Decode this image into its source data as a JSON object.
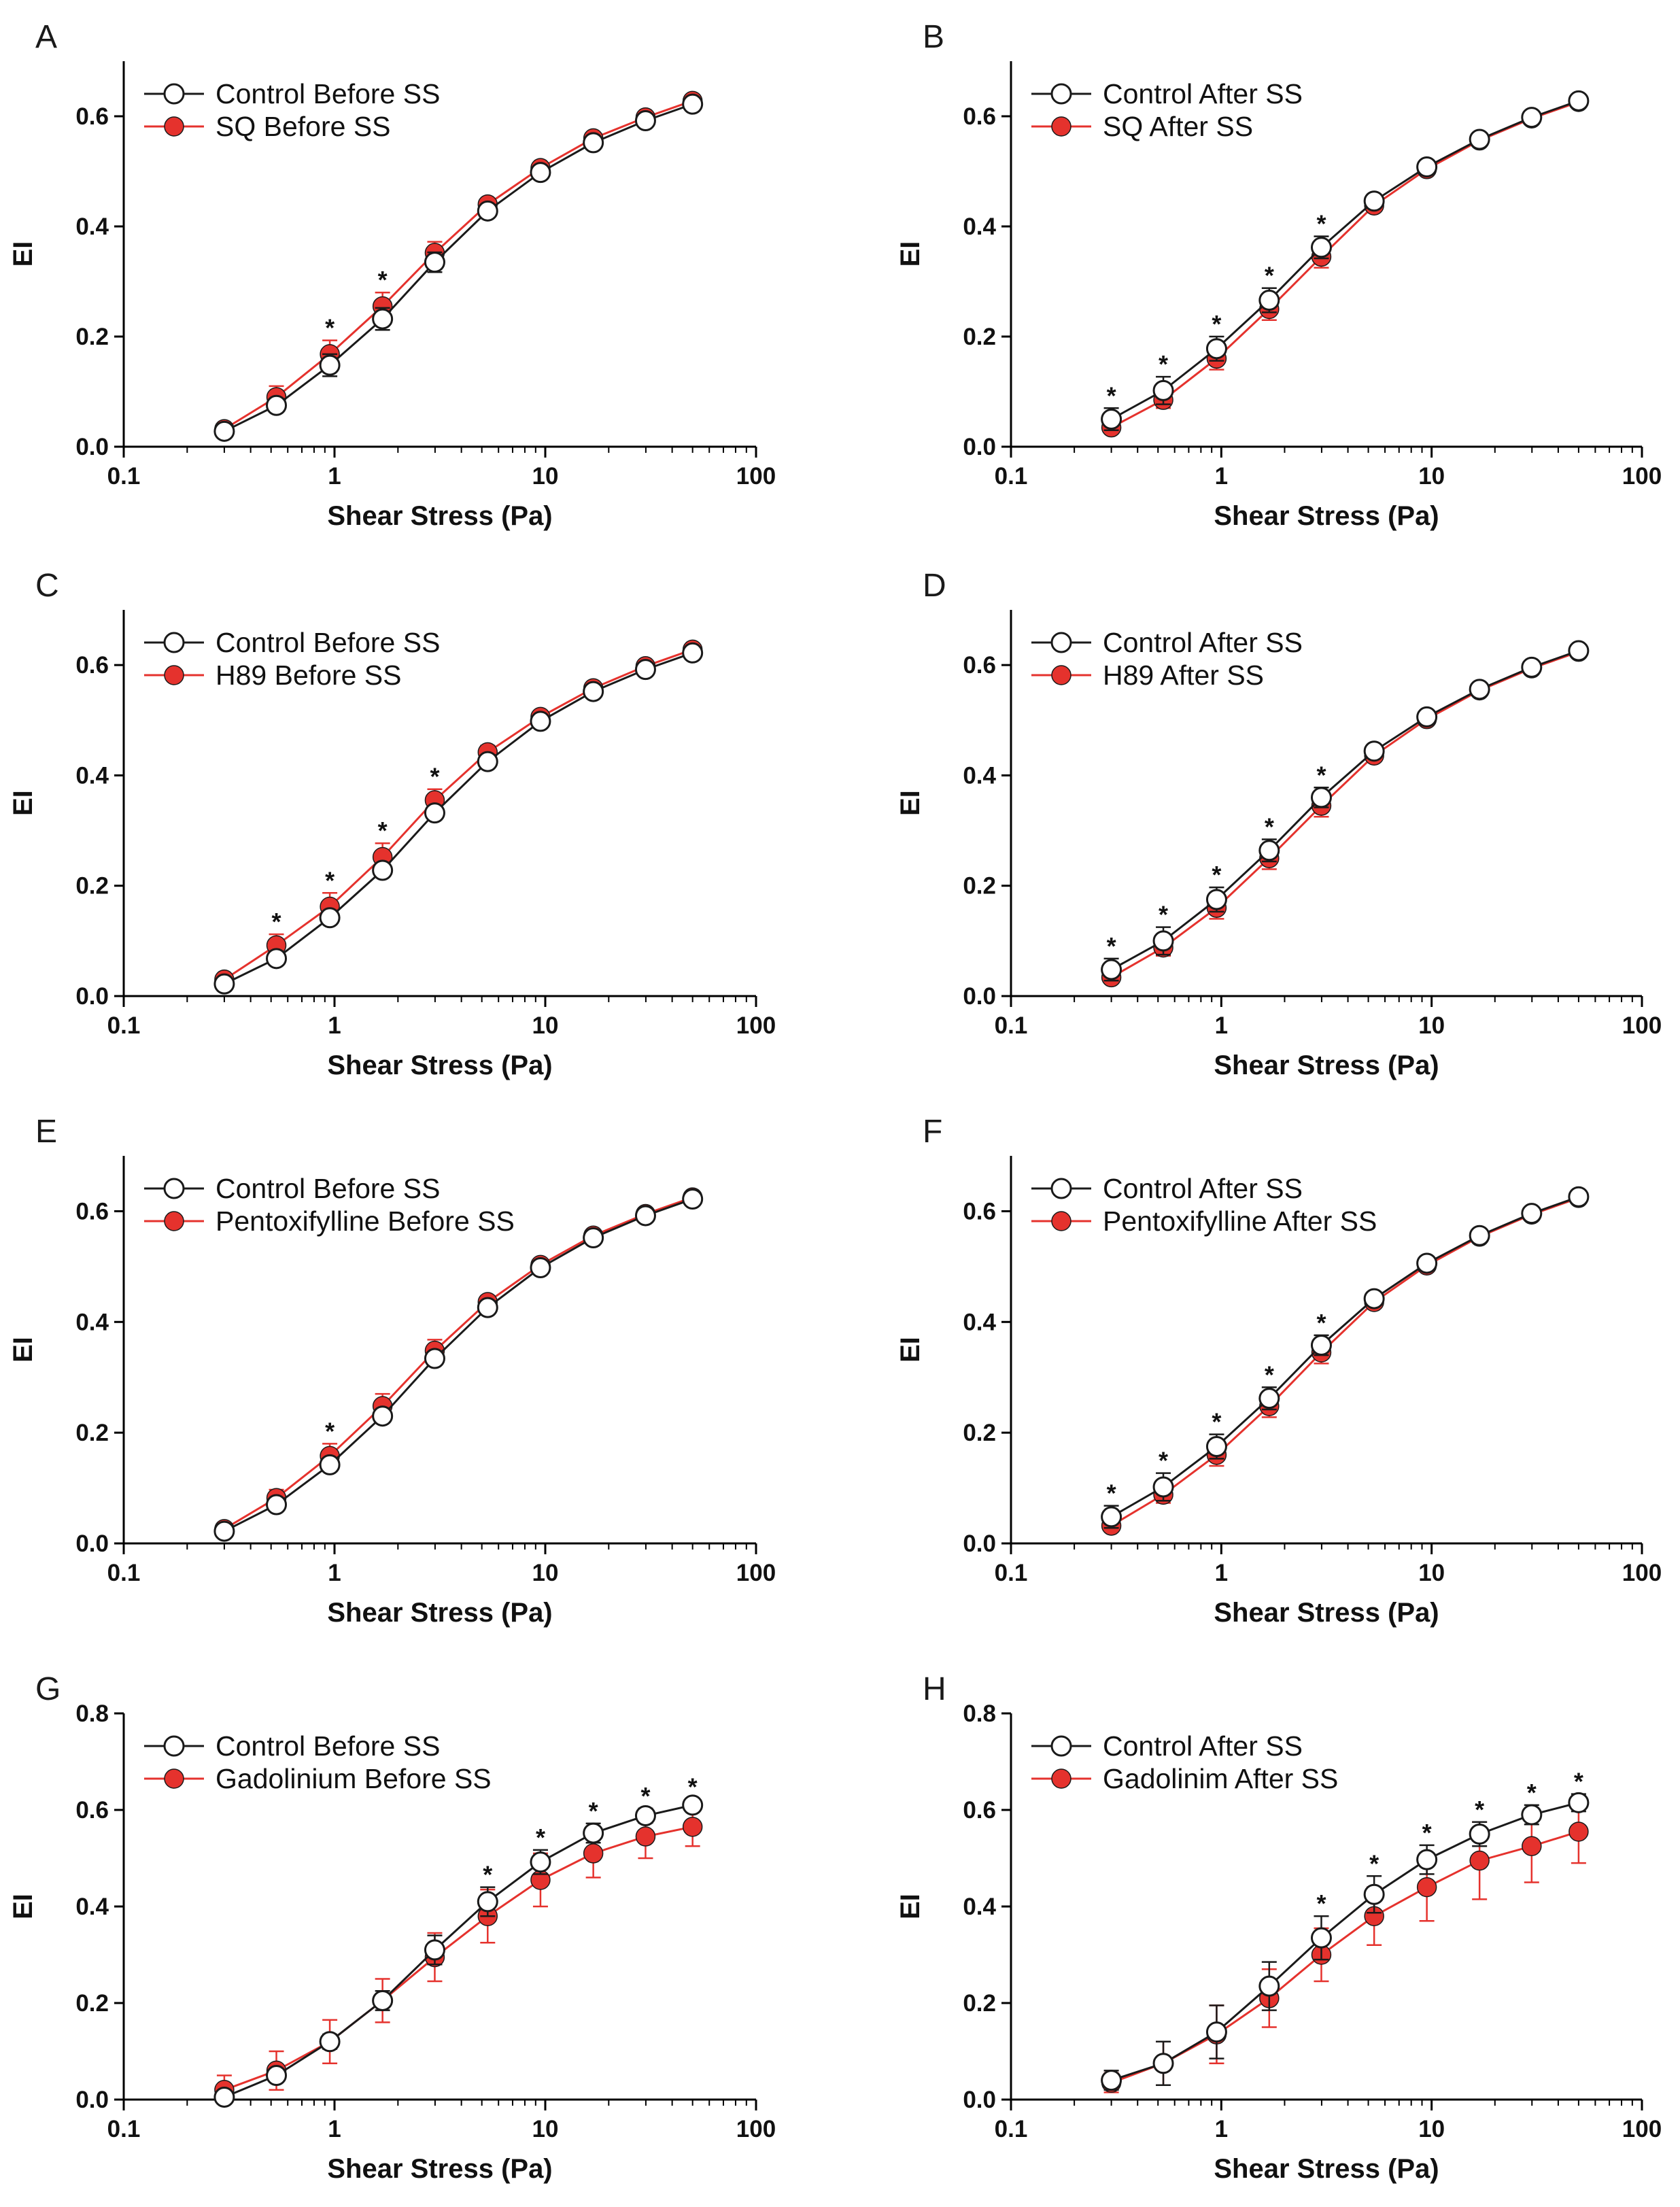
{
  "figure": {
    "colors": {
      "control_line": "#1a1a1a",
      "control_fill": "#ffffff",
      "treatment": "#e5322d"
    }
  },
  "chart_data": [
    {
      "panel": "A",
      "type": "line",
      "xscale": "log",
      "xlabel": "Shear Stress (Pa)",
      "ylabel": "EI",
      "xlim": [
        0.1,
        100
      ],
      "ylim": [
        0.0,
        0.7
      ],
      "xticks": [
        0.1,
        1,
        10,
        100
      ],
      "xtick_labels": [
        "0.1",
        "1",
        "10",
        "100"
      ],
      "yticks": [
        0.0,
        0.2,
        0.4,
        0.6
      ],
      "ytick_labels": [
        "0.0",
        "0.2",
        "0.4",
        "0.6"
      ],
      "x": [
        0.3,
        0.53,
        0.95,
        1.69,
        2.99,
        5.33,
        9.49,
        16.9,
        29.9,
        50
      ],
      "legend": [
        "Control Before SS",
        "SQ Before SS"
      ],
      "series": [
        {
          "name": "Control Before SS",
          "values": [
            0.028,
            0.075,
            0.148,
            0.232,
            0.335,
            0.428,
            0.498,
            0.552,
            0.592,
            0.622
          ],
          "errors": [
            0.008,
            0.012,
            0.02,
            0.02,
            0.018,
            0.01,
            0.008,
            0.006,
            0.005,
            0.004
          ]
        },
        {
          "name": "SQ Before SS",
          "values": [
            0.032,
            0.09,
            0.168,
            0.255,
            0.352,
            0.44,
            0.506,
            0.56,
            0.598,
            0.628
          ],
          "errors": [
            0.008,
            0.02,
            0.025,
            0.025,
            0.02,
            0.01,
            0.008,
            0.006,
            0.005,
            0.004
          ]
        }
      ],
      "significance": [
        0.95,
        1.69
      ]
    },
    {
      "panel": "B",
      "type": "line",
      "xscale": "log",
      "xlabel": "Shear Stress (Pa)",
      "ylabel": "EI",
      "xlim": [
        0.1,
        100
      ],
      "ylim": [
        0.0,
        0.7
      ],
      "xticks": [
        0.1,
        1,
        10,
        100
      ],
      "xtick_labels": [
        "0.1",
        "1",
        "10",
        "100"
      ],
      "yticks": [
        0.0,
        0.2,
        0.4,
        0.6
      ],
      "ytick_labels": [
        "0.0",
        "0.2",
        "0.4",
        "0.6"
      ],
      "x": [
        0.3,
        0.53,
        0.95,
        1.69,
        2.99,
        5.33,
        9.49,
        16.9,
        29.9,
        50
      ],
      "legend": [
        "Control After SS",
        "SQ After SS"
      ],
      "series": [
        {
          "name": "Control After SS",
          "values": [
            0.05,
            0.102,
            0.178,
            0.266,
            0.362,
            0.446,
            0.508,
            0.558,
            0.598,
            0.628
          ],
          "errors": [
            0.02,
            0.025,
            0.022,
            0.022,
            0.02,
            0.012,
            0.008,
            0.006,
            0.005,
            0.004
          ]
        },
        {
          "name": "SQ After SS",
          "values": [
            0.035,
            0.085,
            0.16,
            0.25,
            0.345,
            0.438,
            0.504,
            0.556,
            0.596,
            0.626
          ],
          "errors": [
            0.01,
            0.015,
            0.02,
            0.02,
            0.02,
            0.01,
            0.008,
            0.006,
            0.005,
            0.004
          ]
        }
      ],
      "significance": [
        0.3,
        0.53,
        0.95,
        1.69,
        2.99
      ]
    },
    {
      "panel": "C",
      "type": "line",
      "xscale": "log",
      "xlabel": "Shear Stress (Pa)",
      "ylabel": "EI",
      "xlim": [
        0.1,
        100
      ],
      "ylim": [
        0.0,
        0.7
      ],
      "xticks": [
        0.1,
        1,
        10,
        100
      ],
      "xtick_labels": [
        "0.1",
        "1",
        "10",
        "100"
      ],
      "yticks": [
        0.0,
        0.2,
        0.4,
        0.6
      ],
      "ytick_labels": [
        "0.0",
        "0.2",
        "0.4",
        "0.6"
      ],
      "x": [
        0.3,
        0.53,
        0.95,
        1.69,
        2.99,
        5.33,
        9.49,
        16.9,
        29.9,
        50
      ],
      "legend": [
        "Control Before SS",
        "H89 Before SS"
      ],
      "series": [
        {
          "name": "Control Before SS",
          "values": [
            0.022,
            0.068,
            0.142,
            0.228,
            0.332,
            0.425,
            0.498,
            0.552,
            0.592,
            0.622
          ],
          "errors": [
            0.006,
            0.008,
            0.01,
            0.012,
            0.012,
            0.01,
            0.008,
            0.006,
            0.005,
            0.004
          ]
        },
        {
          "name": "H89 Before SS",
          "values": [
            0.03,
            0.092,
            0.162,
            0.252,
            0.355,
            0.442,
            0.506,
            0.558,
            0.598,
            0.628
          ],
          "errors": [
            0.008,
            0.02,
            0.025,
            0.025,
            0.02,
            0.012,
            0.008,
            0.006,
            0.005,
            0.004
          ]
        }
      ],
      "significance": [
        0.53,
        0.95,
        1.69,
        2.99
      ]
    },
    {
      "panel": "D",
      "type": "line",
      "xscale": "log",
      "xlabel": "Shear Stress (Pa)",
      "ylabel": "EI",
      "xlim": [
        0.1,
        100
      ],
      "ylim": [
        0.0,
        0.7
      ],
      "xticks": [
        0.1,
        1,
        10,
        100
      ],
      "xtick_labels": [
        "0.1",
        "1",
        "10",
        "100"
      ],
      "yticks": [
        0.0,
        0.2,
        0.4,
        0.6
      ],
      "ytick_labels": [
        "0.0",
        "0.2",
        "0.4",
        "0.6"
      ],
      "x": [
        0.3,
        0.53,
        0.95,
        1.69,
        2.99,
        5.33,
        9.49,
        16.9,
        29.9,
        50
      ],
      "legend": [
        "Control After SS",
        "H89 After SS"
      ],
      "series": [
        {
          "name": "Control After SS",
          "values": [
            0.048,
            0.1,
            0.175,
            0.264,
            0.36,
            0.444,
            0.506,
            0.556,
            0.596,
            0.626
          ],
          "errors": [
            0.02,
            0.025,
            0.022,
            0.02,
            0.018,
            0.01,
            0.008,
            0.006,
            0.005,
            0.004
          ]
        },
        {
          "name": "H89 After SS",
          "values": [
            0.034,
            0.088,
            0.16,
            0.25,
            0.345,
            0.436,
            0.502,
            0.554,
            0.594,
            0.624
          ],
          "errors": [
            0.01,
            0.015,
            0.02,
            0.02,
            0.02,
            0.01,
            0.008,
            0.006,
            0.005,
            0.004
          ]
        }
      ],
      "significance": [
        0.3,
        0.53,
        0.95,
        1.69,
        2.99
      ]
    },
    {
      "panel": "E",
      "type": "line",
      "xscale": "log",
      "xlabel": "Shear Stress (Pa)",
      "ylabel": "EI",
      "xlim": [
        0.1,
        100
      ],
      "ylim": [
        0.0,
        0.7
      ],
      "xticks": [
        0.1,
        1,
        10,
        100
      ],
      "xtick_labels": [
        "0.1",
        "1",
        "10",
        "100"
      ],
      "yticks": [
        0.0,
        0.2,
        0.4,
        0.6
      ],
      "ytick_labels": [
        "0.0",
        "0.2",
        "0.4",
        "0.6"
      ],
      "x": [
        0.3,
        0.53,
        0.95,
        1.69,
        2.99,
        5.33,
        9.49,
        16.9,
        29.9,
        50
      ],
      "legend": [
        "Control Before SS",
        "Pentoxifylline Before SS"
      ],
      "series": [
        {
          "name": "Control Before SS",
          "values": [
            0.022,
            0.07,
            0.142,
            0.23,
            0.334,
            0.426,
            0.498,
            0.552,
            0.592,
            0.622
          ],
          "errors": [
            0.006,
            0.008,
            0.01,
            0.012,
            0.012,
            0.01,
            0.008,
            0.006,
            0.005,
            0.004
          ]
        },
        {
          "name": "Pentoxifylline Before SS",
          "values": [
            0.026,
            0.082,
            0.158,
            0.248,
            0.348,
            0.436,
            0.503,
            0.556,
            0.595,
            0.625
          ],
          "errors": [
            0.008,
            0.015,
            0.022,
            0.022,
            0.02,
            0.01,
            0.008,
            0.006,
            0.005,
            0.004
          ]
        }
      ],
      "significance": [
        0.95
      ]
    },
    {
      "panel": "F",
      "type": "line",
      "xscale": "log",
      "xlabel": "Shear Stress (Pa)",
      "ylabel": "EI",
      "xlim": [
        0.1,
        100
      ],
      "ylim": [
        0.0,
        0.7
      ],
      "xticks": [
        0.1,
        1,
        10,
        100
      ],
      "xtick_labels": [
        "0.1",
        "1",
        "10",
        "100"
      ],
      "yticks": [
        0.0,
        0.2,
        0.4,
        0.6
      ],
      "ytick_labels": [
        "0.0",
        "0.2",
        "0.4",
        "0.6"
      ],
      "x": [
        0.3,
        0.53,
        0.95,
        1.69,
        2.99,
        5.33,
        9.49,
        16.9,
        29.9,
        50
      ],
      "legend": [
        "Control After SS",
        "Pentoxifylline After SS"
      ],
      "series": [
        {
          "name": "Control After SS",
          "values": [
            0.048,
            0.102,
            0.175,
            0.262,
            0.358,
            0.442,
            0.506,
            0.556,
            0.596,
            0.626
          ],
          "errors": [
            0.02,
            0.025,
            0.022,
            0.02,
            0.018,
            0.01,
            0.008,
            0.006,
            0.005,
            0.004
          ]
        },
        {
          "name": "Pentoxifylline After SS",
          "values": [
            0.032,
            0.088,
            0.16,
            0.248,
            0.345,
            0.436,
            0.502,
            0.554,
            0.594,
            0.624
          ],
          "errors": [
            0.01,
            0.015,
            0.02,
            0.02,
            0.02,
            0.01,
            0.008,
            0.006,
            0.005,
            0.004
          ]
        }
      ],
      "significance": [
        0.3,
        0.53,
        0.95,
        1.69,
        2.99
      ]
    },
    {
      "panel": "G",
      "type": "line",
      "xscale": "log",
      "xlabel": "Shear Stress (Pa)",
      "ylabel": "EI",
      "xlim": [
        0.1,
        100
      ],
      "ylim": [
        0.0,
        0.8
      ],
      "xticks": [
        0.1,
        1,
        10,
        100
      ],
      "xtick_labels": [
        "0.1",
        "1",
        "10",
        "100"
      ],
      "yticks": [
        0.0,
        0.2,
        0.4,
        0.6,
        0.8
      ],
      "ytick_labels": [
        "0.0",
        "0.2",
        "0.4",
        "0.6",
        "0.8"
      ],
      "x": [
        0.3,
        0.53,
        0.95,
        1.69,
        2.99,
        5.33,
        9.49,
        16.9,
        29.9,
        50
      ],
      "legend": [
        "Control Before SS",
        "Gadolinium Before SS"
      ],
      "series": [
        {
          "name": "Control Before SS",
          "values": [
            0.005,
            0.05,
            0.12,
            0.205,
            0.31,
            0.41,
            0.492,
            0.552,
            0.588,
            0.61
          ],
          "errors": [
            0.005,
            0.01,
            0.015,
            0.02,
            0.03,
            0.03,
            0.025,
            0.02,
            0.015,
            0.012
          ]
        },
        {
          "name": "Gadolinium Before SS",
          "values": [
            0.02,
            0.06,
            0.12,
            0.205,
            0.295,
            0.38,
            0.455,
            0.51,
            0.545,
            0.565
          ],
          "errors": [
            0.03,
            0.04,
            0.045,
            0.045,
            0.05,
            0.055,
            0.055,
            0.05,
            0.045,
            0.04
          ]
        }
      ],
      "significance": [
        5.33,
        9.49,
        16.9,
        29.9,
        50
      ]
    },
    {
      "panel": "H",
      "type": "line",
      "xscale": "log",
      "xlabel": "Shear Stress (Pa)",
      "ylabel": "EI",
      "xlim": [
        0.1,
        100
      ],
      "ylim": [
        0.0,
        0.8
      ],
      "xticks": [
        0.1,
        1,
        10,
        100
      ],
      "xtick_labels": [
        "0.1",
        "1",
        "10",
        "100"
      ],
      "yticks": [
        0.0,
        0.2,
        0.4,
        0.6,
        0.8
      ],
      "ytick_labels": [
        "0.0",
        "0.2",
        "0.4",
        "0.6",
        "0.8"
      ],
      "x": [
        0.3,
        0.53,
        0.95,
        1.69,
        2.99,
        5.33,
        9.49,
        16.9,
        29.9,
        50
      ],
      "legend": [
        "Control After SS",
        "Gadolinim After SS"
      ],
      "series": [
        {
          "name": "Control After SS",
          "values": [
            0.04,
            0.075,
            0.14,
            0.235,
            0.335,
            0.425,
            0.497,
            0.55,
            0.59,
            0.615
          ],
          "errors": [
            0.02,
            0.045,
            0.055,
            0.05,
            0.045,
            0.038,
            0.03,
            0.025,
            0.02,
            0.018
          ]
        },
        {
          "name": "Gadolinim After SS",
          "values": [
            0.035,
            0.075,
            0.135,
            0.21,
            0.3,
            0.38,
            0.44,
            0.495,
            0.525,
            0.555
          ],
          "errors": [
            0.02,
            0.045,
            0.06,
            0.06,
            0.055,
            0.06,
            0.07,
            0.08,
            0.075,
            0.065
          ]
        }
      ],
      "significance": [
        2.99,
        5.33,
        9.49,
        16.9,
        29.9,
        50
      ]
    }
  ]
}
